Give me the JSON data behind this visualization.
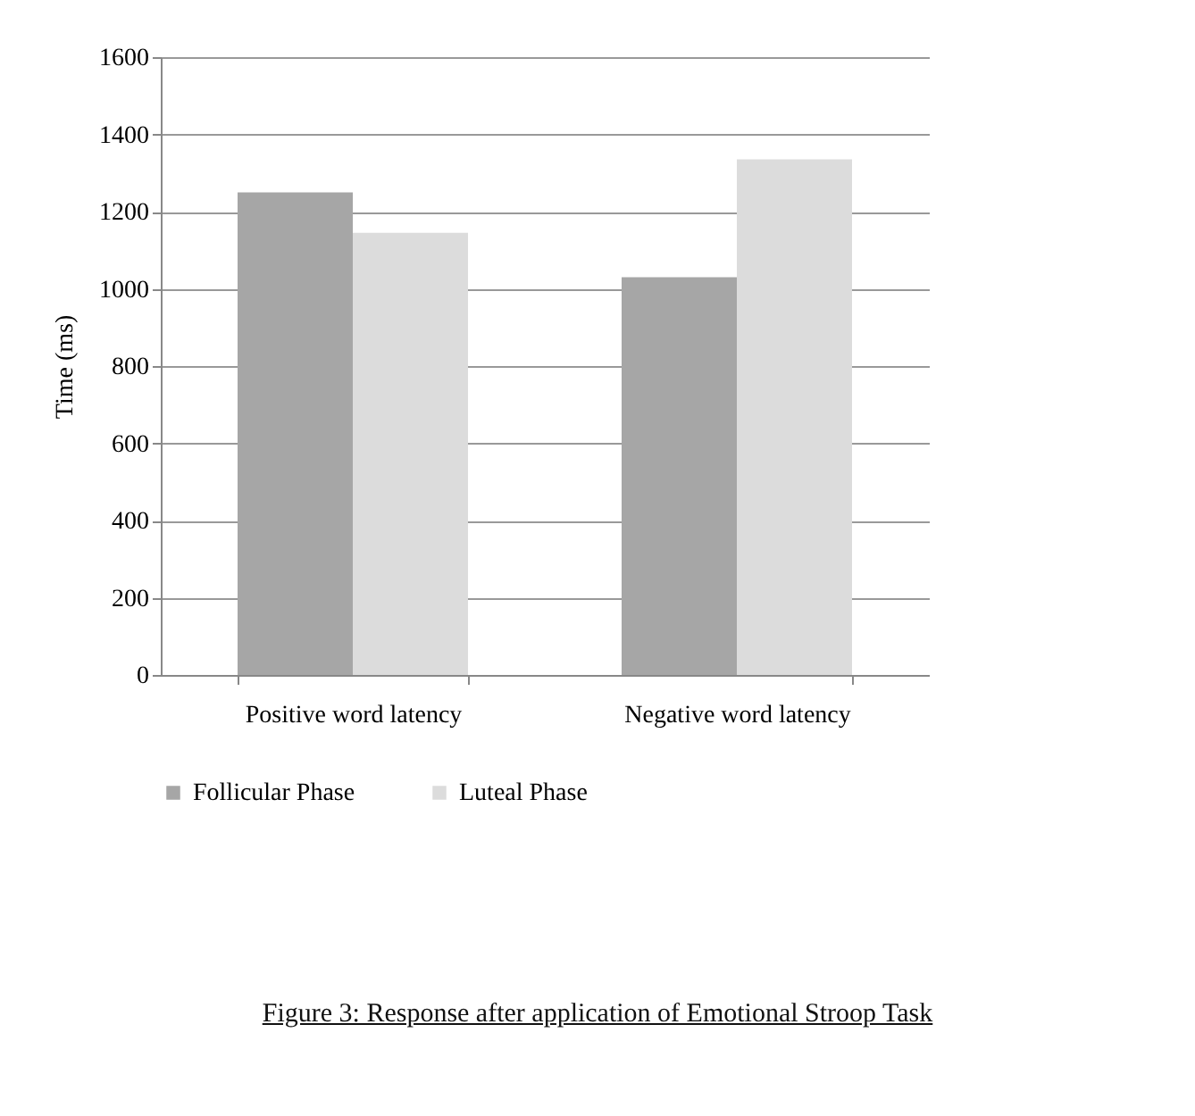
{
  "chart_data": {
    "type": "bar",
    "categories": [
      "Positive word latency",
      "Negative word latency"
    ],
    "ylabel": "Time (ms)",
    "series": [
      {
        "name": "Follicular Phase",
        "color": "#a6a6a6",
        "values": [
          1250,
          1030
        ]
      },
      {
        "name": "Luteal Phase",
        "color": "#dcdcdc",
        "values": [
          1145,
          1335
        ]
      }
    ],
    "ylim": [
      0,
      1600
    ],
    "yticks": [
      0,
      200,
      400,
      600,
      800,
      1000,
      1200,
      1400,
      1600
    ],
    "grid": "y",
    "legend": "bottom",
    "annotations": [
      "Figure 3: Response after application of Emotional Stroop Task"
    ]
  }
}
